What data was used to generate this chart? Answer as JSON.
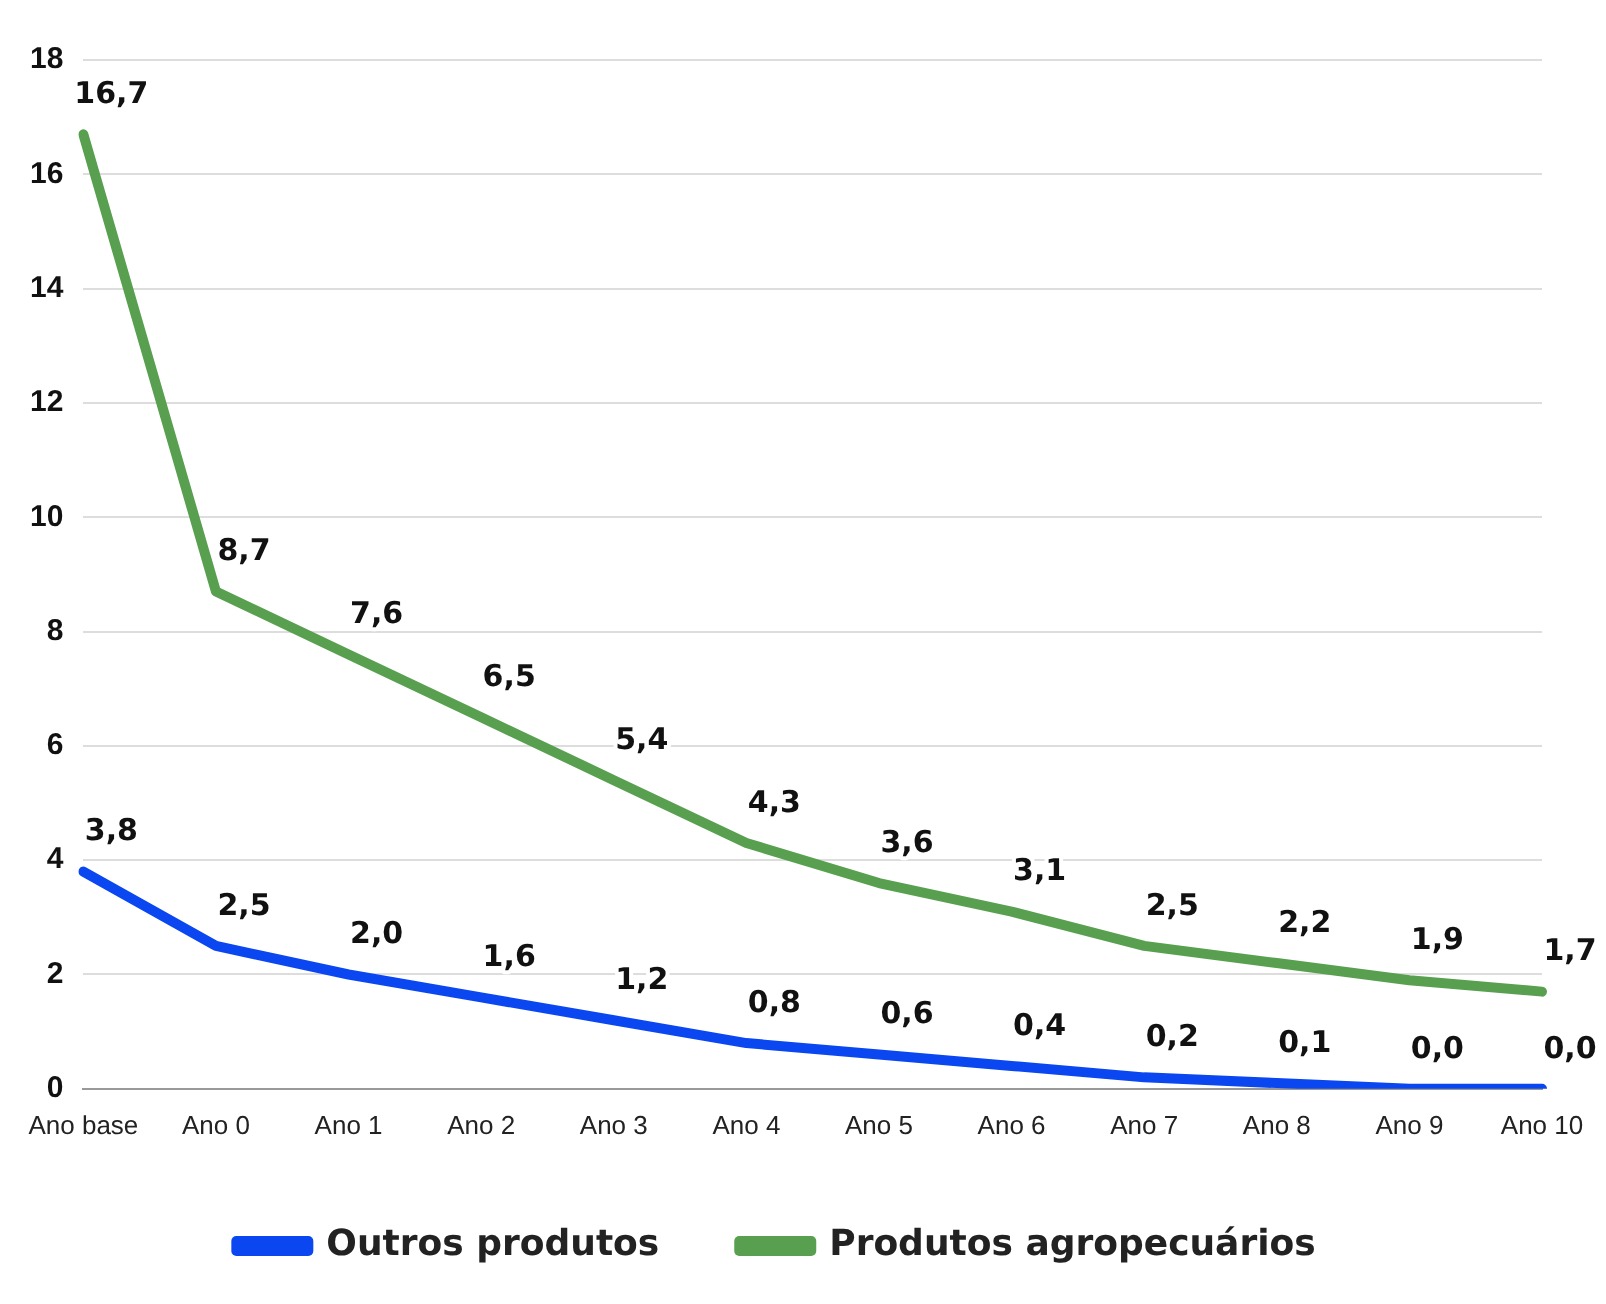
{
  "chart_data": {
    "type": "line",
    "categories": [
      "Ano base",
      "Ano 0",
      "Ano 1",
      "Ano 2",
      "Ano 3",
      "Ano 4",
      "Ano 5",
      "Ano 6",
      "Ano 7",
      "Ano 8",
      "Ano 9",
      "Ano 10"
    ],
    "series": [
      {
        "name": "Outros produtos",
        "color": "#0a47f0",
        "values": [
          3.8,
          2.5,
          2.0,
          1.6,
          1.2,
          0.8,
          0.6,
          0.4,
          0.2,
          0.1,
          0.0,
          0.0
        ],
        "value_labels": [
          "3,8",
          "2,5",
          "2,0",
          "1,6",
          "1,2",
          "0,8",
          "0,6",
          "0,4",
          "0,2",
          "0,1",
          "0,0",
          "0,0"
        ]
      },
      {
        "name": "Produtos agropecuários",
        "color": "#58a050",
        "values": [
          16.7,
          8.7,
          7.6,
          6.5,
          5.4,
          4.3,
          3.6,
          3.1,
          2.5,
          2.2,
          1.9,
          1.7
        ],
        "value_labels": [
          "16,7",
          "8,7",
          "7,6",
          "6,5",
          "5,4",
          "4,3",
          "3,6",
          "3,1",
          "2,5",
          "2,2",
          "1,9",
          "1,7"
        ]
      }
    ],
    "ylim": [
      0,
      18
    ],
    "yticks": [
      0,
      2,
      4,
      6,
      8,
      10,
      12,
      14,
      16,
      18
    ],
    "grid": "y",
    "legend": "bottom",
    "marker": "none",
    "line_style": "solid"
  }
}
